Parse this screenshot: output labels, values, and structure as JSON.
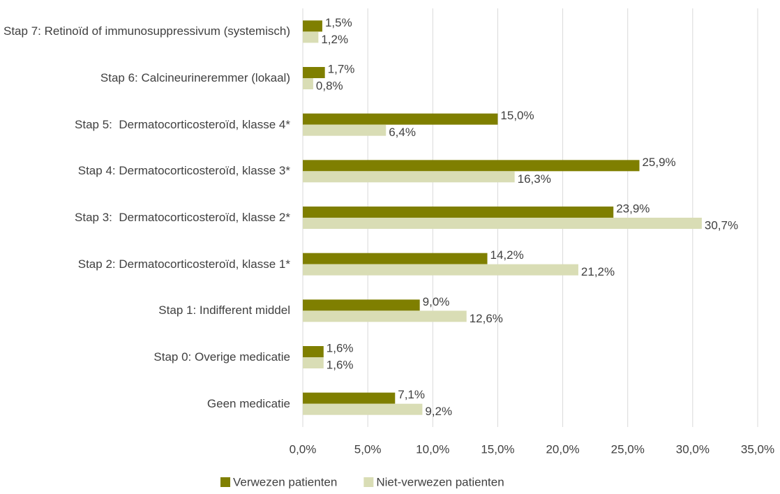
{
  "chart_data": {
    "type": "hbar",
    "categories": [
      "Stap 7: Retinoïd of immunosuppressivum (systemisch)",
      "Stap 6: Calcineurineremmer (lokaal)",
      "Stap 5:  Dermatocorticosteroïd, klasse 4*",
      "Stap 4: Dermatocorticosteroïd, klasse 3*",
      "Stap 3:  Dermatocorticosteroïd, klasse 2*",
      "Stap 2: Dermatocorticosteroïd, klasse 1*",
      "Stap 1: Indifferent middel",
      "Stap 0: Overige medicatie",
      "Geen medicatie"
    ],
    "series": [
      {
        "name": "Verwezen patienten",
        "color": "#7f7f00",
        "values": [
          1.5,
          1.7,
          15.0,
          25.9,
          23.9,
          14.2,
          9.0,
          1.6,
          7.1
        ],
        "value_labels": [
          "1,5%",
          "1,7%",
          "15,0%",
          "25,9%",
          "23,9%",
          "14,2%",
          "9,0%",
          "1,6%",
          "7,1%"
        ]
      },
      {
        "name": "Niet-verwezen patienten",
        "color": "#d9ddb5",
        "values": [
          1.2,
          0.8,
          6.4,
          16.3,
          30.7,
          21.2,
          12.6,
          1.6,
          9.2
        ],
        "value_labels": [
          "1,2%",
          "0,8%",
          "6,4%",
          "16,3%",
          "30,7%",
          "21,2%",
          "12,6%",
          "1,6%",
          "9,2%"
        ]
      }
    ],
    "xlim": [
      0,
      35
    ],
    "xticks": [
      {
        "value": 0,
        "label": "0,0%"
      },
      {
        "value": 5,
        "label": "5,0%"
      },
      {
        "value": 10,
        "label": "10,0%"
      },
      {
        "value": 15,
        "label": "15,0%"
      },
      {
        "value": 20,
        "label": "20,0%"
      },
      {
        "value": 25,
        "label": "25,0%"
      },
      {
        "value": 30,
        "label": "30,0%"
      },
      {
        "value": 35,
        "label": "35,0%"
      }
    ],
    "grid": true,
    "legend": "bottom"
  }
}
